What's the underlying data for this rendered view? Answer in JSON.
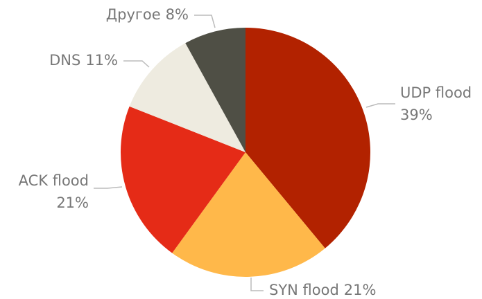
{
  "chart_data": {
    "type": "pie",
    "categories": [
      "UDP flood",
      "SYN flood",
      "ACK flood",
      "DNS",
      "Другое"
    ],
    "values": [
      39,
      21,
      21,
      11,
      8
    ],
    "value_labels": [
      "39%",
      "21%",
      "21%",
      "11%",
      "8%"
    ],
    "colors": [
      "#b22200",
      "#ffb84a",
      "#e52b17",
      "#eeebe0",
      "#4f4f45"
    ]
  }
}
